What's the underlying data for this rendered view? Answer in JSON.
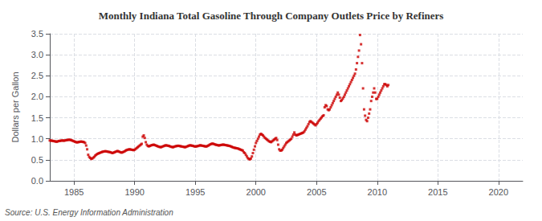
{
  "chart_data": {
    "type": "scatter",
    "title": "Monthly Indiana Total Gasoline Through Company Outlets Price by Refiners",
    "ylabel": "Dollars per Gallon",
    "annotation": "Source: U.S. Energy Information Administration",
    "color": "#CC0000",
    "marker": "square",
    "grid": true,
    "xlim": [
      1983,
      2022
    ],
    "ylim": [
      0.0,
      3.5
    ],
    "xticks": [
      1985,
      1990,
      1995,
      2000,
      2005,
      2010,
      2015,
      2020
    ],
    "yticks": [
      {
        "value": 0.0,
        "label": "0.0"
      },
      0.5,
      {
        "value": 1.0,
        "label": "1.0"
      },
      1.5,
      {
        "value": 2.0,
        "label": "2.0"
      },
      2.5,
      {
        "value": 3.0,
        "label": "3.0"
      },
      3.5
    ],
    "x": [
      1983.0,
      1983.083,
      1983.167,
      1983.25,
      1983.333,
      1983.417,
      1983.5,
      1983.583,
      1983.667,
      1983.75,
      1983.833,
      1983.917,
      1984.0,
      1984.083,
      1984.167,
      1984.25,
      1984.333,
      1984.417,
      1984.5,
      1984.583,
      1984.667,
      1984.75,
      1984.833,
      1984.917,
      1985.0,
      1985.083,
      1985.167,
      1985.25,
      1985.333,
      1985.417,
      1985.5,
      1985.583,
      1985.667,
      1985.75,
      1985.833,
      1985.917,
      1986.0,
      1986.083,
      1986.167,
      1986.25,
      1986.333,
      1986.417,
      1986.5,
      1986.583,
      1986.667,
      1986.75,
      1986.833,
      1986.917,
      1987.0,
      1987.083,
      1987.167,
      1987.25,
      1987.333,
      1987.417,
      1987.5,
      1987.583,
      1987.667,
      1987.75,
      1987.833,
      1987.917,
      1988.0,
      1988.083,
      1988.167,
      1988.25,
      1988.333,
      1988.417,
      1988.5,
      1988.583,
      1988.667,
      1988.75,
      1988.833,
      1988.917,
      1989.0,
      1989.083,
      1989.167,
      1989.25,
      1989.333,
      1989.417,
      1989.5,
      1989.583,
      1989.667,
      1989.75,
      1989.833,
      1989.917,
      1990.0,
      1990.083,
      1990.167,
      1990.25,
      1990.333,
      1990.417,
      1990.5,
      1990.583,
      1990.667,
      1990.75,
      1990.833,
      1990.917,
      1991.0,
      1991.083,
      1991.167,
      1991.25,
      1991.333,
      1991.417,
      1991.5,
      1991.583,
      1991.667,
      1991.75,
      1991.833,
      1991.917,
      1992.0,
      1992.083,
      1992.167,
      1992.25,
      1992.333,
      1992.417,
      1992.5,
      1992.583,
      1992.667,
      1992.75,
      1992.833,
      1992.917,
      1993.0,
      1993.083,
      1993.167,
      1993.25,
      1993.333,
      1993.417,
      1993.5,
      1993.583,
      1993.667,
      1993.75,
      1993.833,
      1993.917,
      1994.0,
      1994.083,
      1994.167,
      1994.25,
      1994.333,
      1994.417,
      1994.5,
      1994.583,
      1994.667,
      1994.75,
      1994.833,
      1994.917,
      1995.0,
      1995.083,
      1995.167,
      1995.25,
      1995.333,
      1995.417,
      1995.5,
      1995.583,
      1995.667,
      1995.75,
      1995.833,
      1995.917,
      1996.0,
      1996.083,
      1996.167,
      1996.25,
      1996.333,
      1996.417,
      1996.5,
      1996.583,
      1996.667,
      1996.75,
      1996.833,
      1996.917,
      1997.0,
      1997.083,
      1997.167,
      1997.25,
      1997.333,
      1997.417,
      1997.5,
      1997.583,
      1997.667,
      1997.75,
      1997.833,
      1997.917,
      1998.0,
      1998.083,
      1998.167,
      1998.25,
      1998.333,
      1998.417,
      1998.5,
      1998.583,
      1998.667,
      1998.75,
      1998.833,
      1998.917,
      1999.0,
      1999.083,
      1999.167,
      1999.25,
      1999.333,
      1999.417,
      1999.5,
      1999.583,
      1999.667,
      1999.75,
      1999.833,
      1999.917,
      2000.0,
      2000.083,
      2000.167,
      2000.25,
      2000.333,
      2000.417,
      2000.5,
      2000.583,
      2000.667,
      2000.75,
      2000.833,
      2000.917,
      2001.0,
      2001.083,
      2001.167,
      2001.25,
      2001.333,
      2001.417,
      2001.5,
      2001.583,
      2001.667,
      2001.75,
      2001.833,
      2001.917,
      2002.0,
      2002.083,
      2002.167,
      2002.25,
      2002.333,
      2002.417,
      2002.5,
      2002.583,
      2002.667,
      2002.75,
      2002.833,
      2002.917,
      2003.0,
      2003.083,
      2003.167,
      2003.25,
      2003.333,
      2003.417,
      2003.5,
      2003.583,
      2003.667,
      2003.75,
      2003.833,
      2003.917,
      2004.0,
      2004.083,
      2004.167,
      2004.25,
      2004.333,
      2004.417,
      2004.5,
      2004.583,
      2004.667,
      2004.75,
      2004.833,
      2004.917,
      2005.0,
      2005.083,
      2005.167,
      2005.25,
      2005.333,
      2005.417,
      2005.5,
      2005.583,
      2005.667,
      2005.75,
      2005.833,
      2005.917,
      2006.0,
      2006.083,
      2006.167,
      2006.25,
      2006.333,
      2006.417,
      2006.5,
      2006.583,
      2006.667,
      2006.75,
      2006.833,
      2006.917,
      2007.0,
      2007.083,
      2007.167,
      2007.25,
      2007.333,
      2007.417,
      2007.5,
      2007.583,
      2007.667,
      2007.75,
      2007.833,
      2007.917,
      2008.0,
      2008.083,
      2008.167,
      2008.25,
      2008.333,
      2008.417,
      2008.5,
      2008.583,
      2008.667,
      2008.75,
      2008.833,
      2008.917,
      2009.0,
      2009.083,
      2009.167,
      2009.25,
      2009.333,
      2009.417,
      2009.5,
      2009.583,
      2009.667,
      2009.75,
      2009.833,
      2009.917,
      2010.0,
      2010.083,
      2010.167,
      2010.25,
      2010.333,
      2010.417,
      2010.5,
      2010.583,
      2010.667,
      2010.75,
      2010.833,
      2010.917
    ],
    "values": [
      0.96,
      0.958,
      0.955,
      0.95,
      0.945,
      0.94,
      0.935,
      0.93,
      0.94,
      0.948,
      0.95,
      0.955,
      0.96,
      0.958,
      0.955,
      0.96,
      0.965,
      0.97,
      0.975,
      0.978,
      0.975,
      0.97,
      0.96,
      0.95,
      0.94,
      0.93,
      0.92,
      0.915,
      0.92,
      0.925,
      0.93,
      0.935,
      0.93,
      0.925,
      0.92,
      0.9,
      0.84,
      0.75,
      0.62,
      0.57,
      0.545,
      0.52,
      0.53,
      0.55,
      0.57,
      0.6,
      0.62,
      0.64,
      0.65,
      0.66,
      0.67,
      0.68,
      0.69,
      0.695,
      0.7,
      0.705,
      0.7,
      0.695,
      0.69,
      0.685,
      0.68,
      0.67,
      0.66,
      0.67,
      0.68,
      0.69,
      0.7,
      0.71,
      0.7,
      0.69,
      0.68,
      0.67,
      0.68,
      0.69,
      0.7,
      0.72,
      0.73,
      0.74,
      0.745,
      0.75,
      0.745,
      0.74,
      0.735,
      0.73,
      0.74,
      0.76,
      0.78,
      0.8,
      0.82,
      0.84,
      0.86,
      0.88,
      1.05,
      1.08,
      1.02,
      0.92,
      0.86,
      0.83,
      0.82,
      0.83,
      0.84,
      0.85,
      0.855,
      0.86,
      0.85,
      0.84,
      0.83,
      0.82,
      0.81,
      0.805,
      0.8,
      0.81,
      0.82,
      0.83,
      0.84,
      0.845,
      0.84,
      0.835,
      0.83,
      0.82,
      0.81,
      0.805,
      0.8,
      0.81,
      0.82,
      0.825,
      0.83,
      0.835,
      0.83,
      0.825,
      0.82,
      0.815,
      0.81,
      0.805,
      0.8,
      0.81,
      0.82,
      0.83,
      0.84,
      0.845,
      0.84,
      0.835,
      0.83,
      0.82,
      0.815,
      0.82,
      0.825,
      0.83,
      0.84,
      0.845,
      0.84,
      0.835,
      0.83,
      0.825,
      0.82,
      0.815,
      0.83,
      0.84,
      0.855,
      0.87,
      0.88,
      0.885,
      0.88,
      0.87,
      0.86,
      0.855,
      0.85,
      0.84,
      0.845,
      0.85,
      0.855,
      0.86,
      0.86,
      0.855,
      0.85,
      0.845,
      0.84,
      0.835,
      0.83,
      0.82,
      0.81,
      0.8,
      0.79,
      0.785,
      0.78,
      0.775,
      0.77,
      0.76,
      0.75,
      0.74,
      0.73,
      0.72,
      0.68,
      0.66,
      0.62,
      0.58,
      0.54,
      0.52,
      0.51,
      0.53,
      0.58,
      0.66,
      0.74,
      0.82,
      0.9,
      0.95,
      1.0,
      1.05,
      1.1,
      1.12,
      1.1,
      1.08,
      1.05,
      1.02,
      1.0,
      0.98,
      0.96,
      0.94,
      0.93,
      0.92,
      0.94,
      0.96,
      0.98,
      1.0,
      1.02,
      0.97,
      0.86,
      0.75,
      0.72,
      0.72,
      0.74,
      0.78,
      0.82,
      0.86,
      0.9,
      0.92,
      0.94,
      0.96,
      0.98,
      1.0,
      1.05,
      1.1,
      1.15,
      1.1,
      1.08,
      1.09,
      1.1,
      1.11,
      1.12,
      1.13,
      1.14,
      1.15,
      1.18,
      1.22,
      1.26,
      1.3,
      1.35,
      1.4,
      1.42,
      1.4,
      1.38,
      1.36,
      1.34,
      1.32,
      1.35,
      1.38,
      1.42,
      1.45,
      1.48,
      1.51,
      1.54,
      1.56,
      1.75,
      1.8,
      1.78,
      1.7,
      1.68,
      1.7,
      1.75,
      1.8,
      1.85,
      1.9,
      1.95,
      2.0,
      2.05,
      2.1,
      2.05,
      1.98,
      1.9,
      1.92,
      1.96,
      2.0,
      2.05,
      2.1,
      2.15,
      2.2,
      2.25,
      2.3,
      2.35,
      2.4,
      2.45,
      2.5,
      2.55,
      2.65,
      2.8,
      2.95,
      3.1,
      3.47,
      3.25,
      2.8,
      2.2,
      1.7,
      1.55,
      1.45,
      1.42,
      1.5,
      1.6,
      1.7,
      1.9,
      2.0,
      2.1,
      2.2,
      2.1,
      1.95,
      1.95,
      2.0,
      2.05,
      2.1,
      2.15,
      2.2,
      2.25,
      2.3,
      2.3,
      2.28,
      2.25,
      2.28
    ]
  }
}
